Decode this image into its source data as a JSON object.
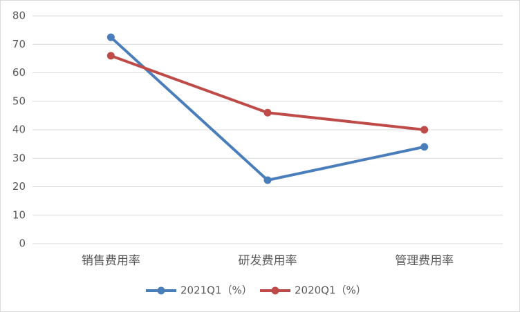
{
  "chart_data": {
    "type": "line",
    "categories": [
      "销售费用率",
      "研发费用率",
      "管理费用率"
    ],
    "series": [
      {
        "name": "2021Q1（%）",
        "color": "#4a7ebb",
        "values": [
          72.5,
          22.3,
          34
        ]
      },
      {
        "name": "2020Q1（%）",
        "color": "#be4b48",
        "values": [
          66,
          46,
          40
        ]
      }
    ],
    "ylim": [
      0,
      80
    ],
    "yticks": [
      0,
      10,
      20,
      30,
      40,
      50,
      60,
      70,
      80
    ],
    "grid": true,
    "legend": "bottom"
  }
}
